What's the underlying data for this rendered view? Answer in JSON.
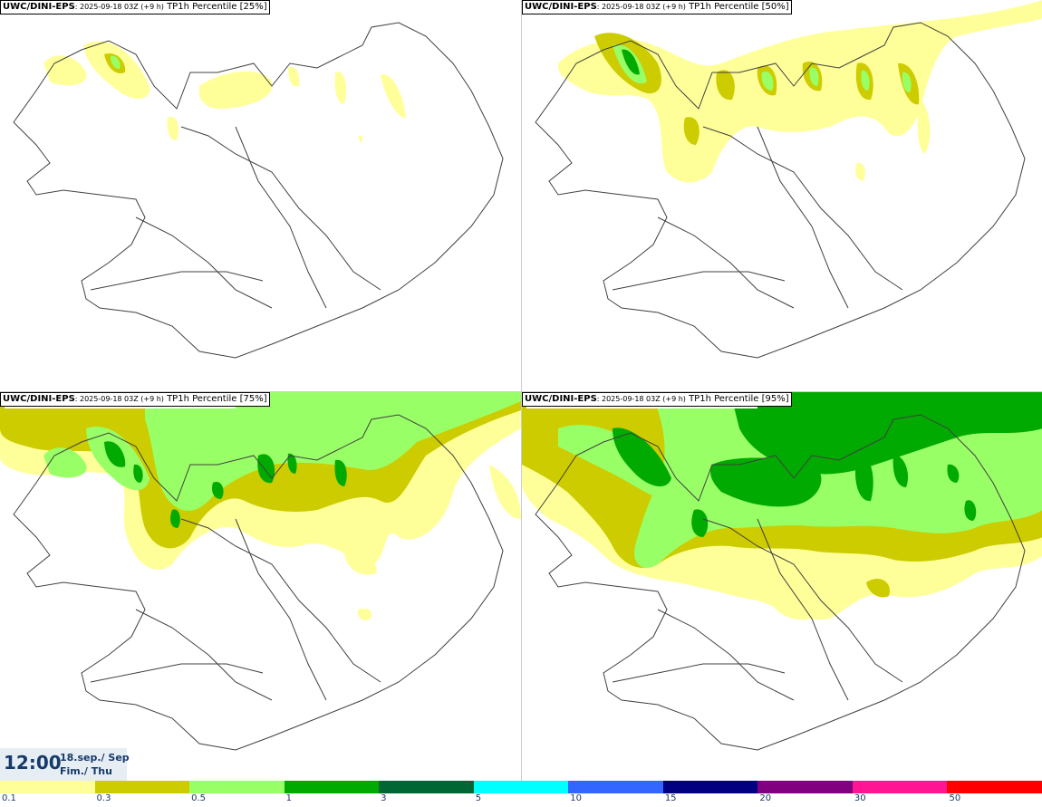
{
  "panels": [
    {
      "model": "UWC/DINI-EPS",
      "run": ": 2025-09-18 03Z (+9 h)",
      "field": "TP1h Percentile [25%]",
      "level": "p25"
    },
    {
      "model": "UWC/DINI-EPS",
      "run": ": 2025-09-18 03Z (+9 h)",
      "field": "TP1h Percentile [50%]",
      "level": "p50"
    },
    {
      "model": "UWC/DINI-EPS",
      "run": ": 2025-09-18 03Z (+9 h)",
      "field": "TP1h Percentile [75%]",
      "level": "p75"
    },
    {
      "model": "UWC/DINI-EPS",
      "run": ": 2025-09-18 03Z (+9 h)",
      "field": "TP1h Percentile [95%]",
      "level": "p95"
    }
  ],
  "valid": {
    "time": "12:00",
    "date_line1": "18.sep./ Sep",
    "date_line2": "Fim./ Thu"
  },
  "legend": {
    "colors": [
      "#ffff99",
      "#cccc00",
      "#99ff66",
      "#00aa00",
      "#006633",
      "#00ffff",
      "#3366ff",
      "#000080",
      "#800080",
      "#ff1493",
      "#ff0000"
    ],
    "ticks": [
      "0.1",
      "0.3",
      "0.5",
      "1",
      "3",
      "5",
      "10",
      "15",
      "20",
      "30",
      "50"
    ]
  },
  "map_colors": {
    "coast": "#404040",
    "p_low": "#ffff99",
    "p_mid": "#cccc00",
    "p_high": "#99ff66",
    "p_top": "#00aa00",
    "p_dark": "#006633"
  }
}
